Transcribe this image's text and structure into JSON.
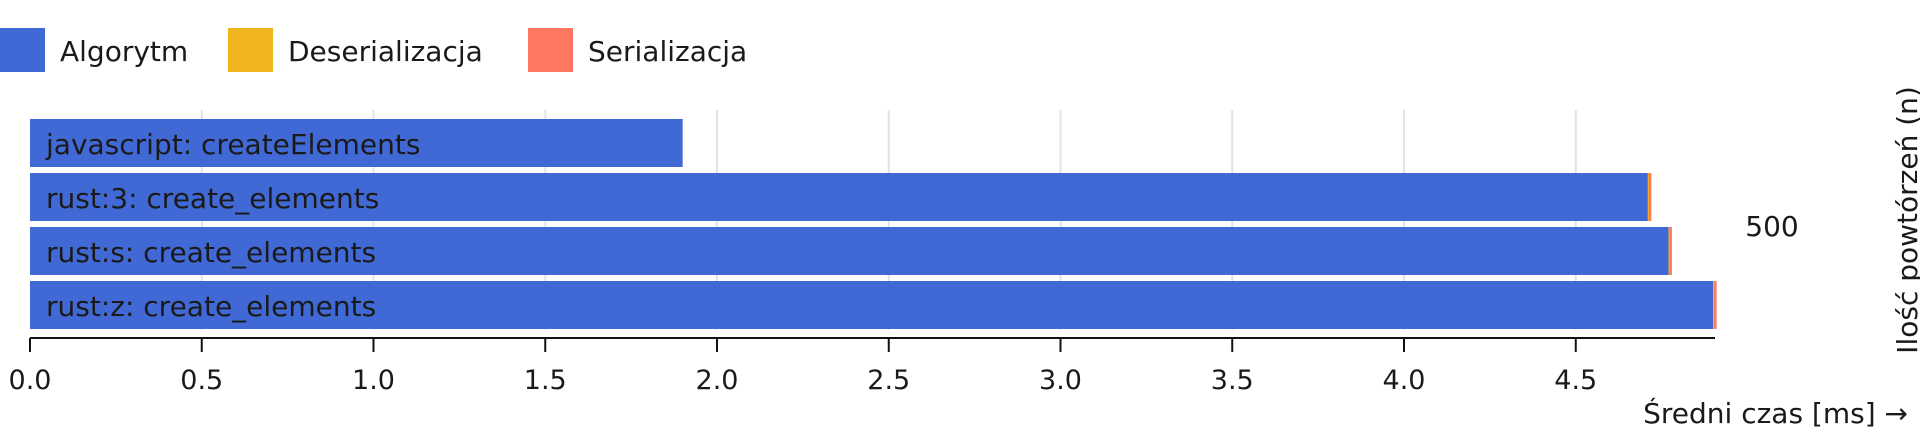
{
  "chart_data": {
    "type": "bar",
    "orientation": "horizontal",
    "stacked": true,
    "legend": {
      "placement": "top-left",
      "entries": [
        {
          "name": "Algorytm",
          "color": "#4169d6"
        },
        {
          "name": "Deserializacja",
          "color": "#f0b41c"
        },
        {
          "name": "Serializacja",
          "color": "#ff7763"
        }
      ]
    },
    "categories": [
      "javascript: createElements",
      "rust:3: create_elements",
      "rust:s: create_elements",
      "rust:z: create_elements"
    ],
    "series": [
      {
        "name": "Algorytm",
        "values": [
          1.9,
          4.71,
          4.77,
          4.9
        ]
      },
      {
        "name": "Deserializacja",
        "values": [
          0.0,
          0.003,
          0.003,
          0.003
        ]
      },
      {
        "name": "Serializacja",
        "values": [
          0.0,
          0.007,
          0.007,
          0.007
        ]
      }
    ],
    "group_label": "500",
    "xlabel": "Średni czas [ms] →",
    "ylabel": "Ilość powtórzeń (n)",
    "xlim": [
      0,
      4.9
    ],
    "xticks": [
      "0.0",
      "0.5",
      "1.0",
      "1.5",
      "2.0",
      "2.5",
      "3.0",
      "3.5",
      "4.0",
      "4.5"
    ],
    "grid": "vertical"
  }
}
